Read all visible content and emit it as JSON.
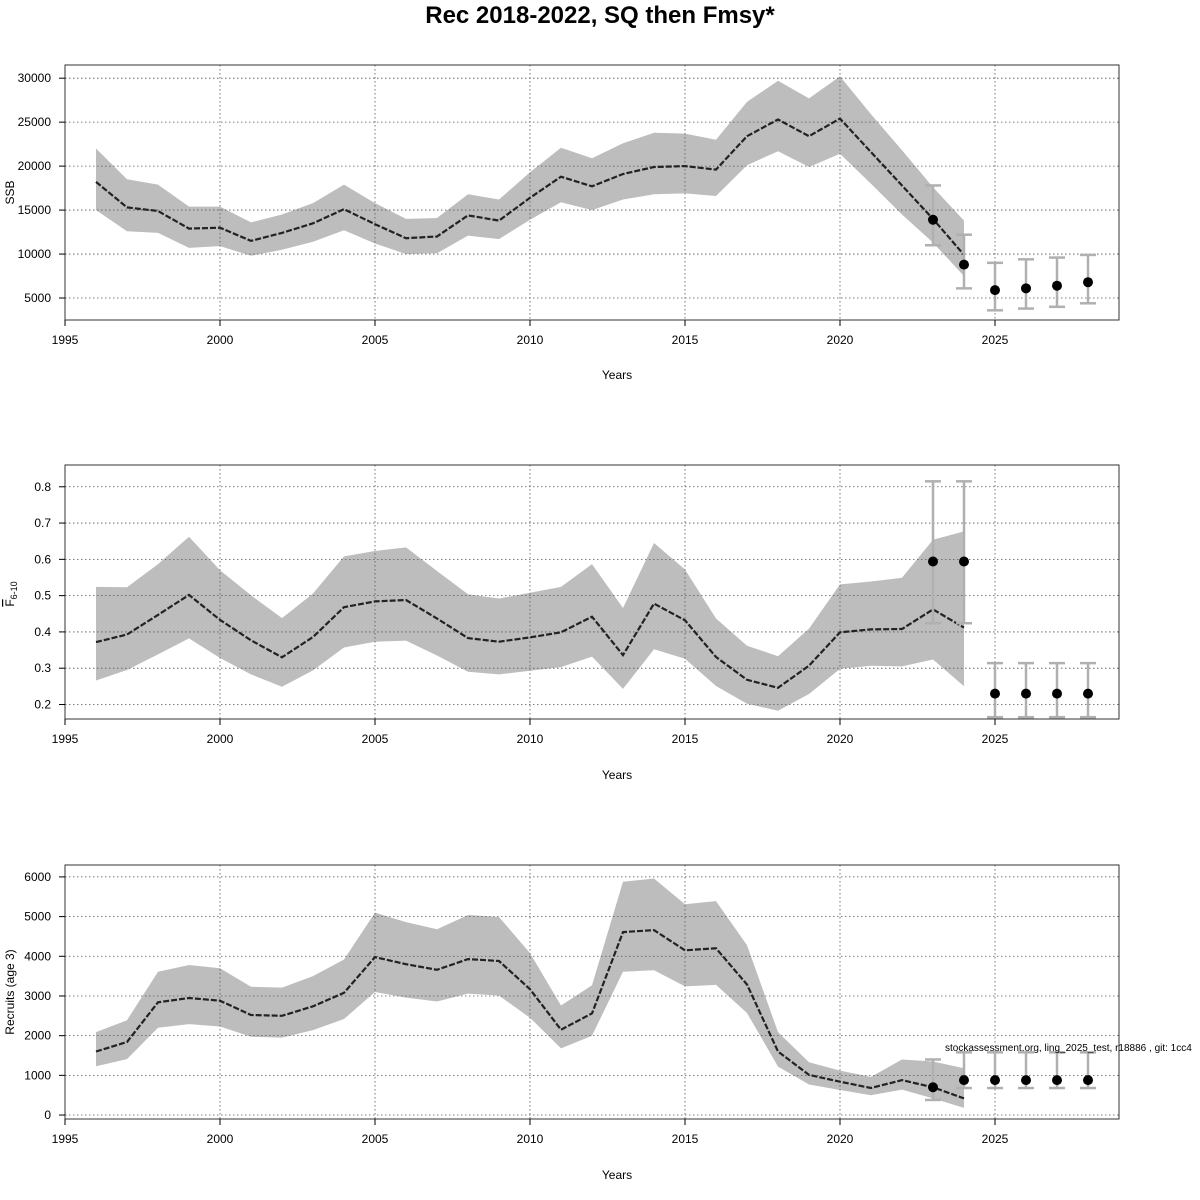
{
  "page": {
    "title": "Rec 2018-2022, SQ then Fmsy*",
    "footnote": "stockassessment.org, ling_2025_test, r18886 , git: 1cc4"
  },
  "style": {
    "band_color": "#bdbdbd",
    "line_color": "#222222",
    "point_color": "#000000",
    "errorbar_color": "#b0b0b0",
    "grid_color": "#555555"
  },
  "chart_data": [
    {
      "type": "line",
      "title": "",
      "xlabel": "Years",
      "ylabel": "SSB",
      "xlim": [
        1995,
        2029
      ],
      "ylim": [
        2500,
        31500
      ],
      "x_ticks": [
        1995,
        2000,
        2005,
        2010,
        2015,
        2020,
        2025
      ],
      "y_ticks": [
        5000,
        10000,
        15000,
        20000,
        25000,
        30000
      ],
      "grid": true,
      "estimate": {
        "x": [
          1996,
          1997,
          1998,
          1999,
          2000,
          2001,
          2002,
          2003,
          2004,
          2005,
          2006,
          2007,
          2008,
          2009,
          2010,
          2011,
          2012,
          2013,
          2014,
          2015,
          2016,
          2017,
          2018,
          2019,
          2020,
          2021,
          2022,
          2023,
          2024
        ],
        "y": [
          18200,
          15300,
          14900,
          12900,
          13000,
          11500,
          12400,
          13500,
          15100,
          13400,
          11800,
          12000,
          14400,
          13800,
          16400,
          18800,
          17700,
          19100,
          19900,
          20000,
          19600,
          23400,
          25300,
          23400,
          25400,
          21600,
          17800,
          14000,
          9900
        ],
        "lower": [
          15000,
          12600,
          12400,
          10700,
          10900,
          9800,
          10500,
          11400,
          12700,
          11200,
          10000,
          10100,
          12100,
          11700,
          13900,
          15900,
          15000,
          16200,
          16800,
          16900,
          16600,
          20100,
          21700,
          19900,
          21400,
          18000,
          14500,
          11300,
          7500
        ],
        "upper": [
          22000,
          18500,
          17900,
          15400,
          15400,
          13600,
          14500,
          15800,
          17900,
          15800,
          14000,
          14100,
          16800,
          16200,
          19300,
          22100,
          20900,
          22600,
          23800,
          23700,
          23000,
          27300,
          29700,
          27700,
          30200,
          25900,
          21800,
          17600,
          13800
        ]
      },
      "forecast": {
        "x": [
          2023,
          2024,
          2025,
          2026,
          2027,
          2028
        ],
        "y": [
          13900,
          8800,
          5900,
          6100,
          6400,
          6800
        ],
        "lower": [
          11000,
          6100,
          3600,
          3800,
          4000,
          4400
        ],
        "upper": [
          17800,
          12200,
          9000,
          9400,
          9600,
          9900
        ]
      }
    },
    {
      "type": "line",
      "title": "",
      "xlabel": "Years",
      "ylabel": "F̅6-10",
      "ylabel_main": "F",
      "ylabel_sub": "6-10",
      "xlim": [
        1995,
        2029
      ],
      "ylim": [
        0.16,
        0.86
      ],
      "x_ticks": [
        1995,
        2000,
        2005,
        2010,
        2015,
        2020,
        2025
      ],
      "y_ticks": [
        0.2,
        0.3,
        0.4,
        0.5,
        0.6,
        0.7,
        0.8
      ],
      "grid": true,
      "estimate": {
        "x": [
          1996,
          1997,
          1998,
          1999,
          2000,
          2001,
          2002,
          2003,
          2004,
          2005,
          2006,
          2007,
          2008,
          2009,
          2010,
          2011,
          2012,
          2013,
          2014,
          2015,
          2016,
          2017,
          2018,
          2019,
          2020,
          2021,
          2022,
          2023,
          2024
        ],
        "y": [
          0.372,
          0.393,
          0.447,
          0.502,
          0.433,
          0.377,
          0.33,
          0.386,
          0.468,
          0.484,
          0.488,
          0.437,
          0.383,
          0.373,
          0.385,
          0.399,
          0.442,
          0.336,
          0.478,
          0.432,
          0.331,
          0.268,
          0.246,
          0.307,
          0.399,
          0.407,
          0.408,
          0.462,
          0.412
        ],
        "lower": [
          0.266,
          0.295,
          0.338,
          0.382,
          0.328,
          0.283,
          0.249,
          0.294,
          0.357,
          0.373,
          0.376,
          0.335,
          0.29,
          0.283,
          0.293,
          0.303,
          0.332,
          0.243,
          0.352,
          0.326,
          0.251,
          0.202,
          0.183,
          0.229,
          0.298,
          0.307,
          0.305,
          0.324,
          0.25
        ],
        "upper": [
          0.524,
          0.523,
          0.587,
          0.662,
          0.57,
          0.501,
          0.438,
          0.506,
          0.608,
          0.623,
          0.633,
          0.568,
          0.504,
          0.492,
          0.508,
          0.524,
          0.587,
          0.466,
          0.645,
          0.572,
          0.437,
          0.362,
          0.333,
          0.409,
          0.531,
          0.539,
          0.549,
          0.654,
          0.677
        ]
      },
      "forecast": {
        "x": [
          2023,
          2024,
          2025,
          2026,
          2027,
          2028
        ],
        "y": [
          0.594,
          0.594,
          0.23,
          0.23,
          0.23,
          0.23
        ],
        "lower": [
          0.424,
          0.424,
          0.165,
          0.165,
          0.165,
          0.165
        ],
        "upper": [
          0.815,
          0.815,
          0.314,
          0.314,
          0.314,
          0.314
        ]
      }
    },
    {
      "type": "line",
      "title": "",
      "xlabel": "Years",
      "ylabel": "Recruits (age 3)",
      "xlim": [
        1995,
        2029
      ],
      "ylim": [
        -100,
        6300
      ],
      "x_ticks": [
        1995,
        2000,
        2005,
        2010,
        2015,
        2020,
        2025
      ],
      "y_ticks": [
        0,
        1000,
        2000,
        3000,
        4000,
        5000,
        6000
      ],
      "grid": true,
      "estimate": {
        "x": [
          1996,
          1997,
          1998,
          1999,
          2000,
          2001,
          2002,
          2003,
          2004,
          2005,
          2006,
          2007,
          2008,
          2009,
          2010,
          2011,
          2012,
          2013,
          2014,
          2015,
          2016,
          2017,
          2018,
          2019,
          2020,
          2021,
          2022,
          2023,
          2024
        ],
        "y": [
          1600,
          1840,
          2840,
          2950,
          2880,
          2520,
          2500,
          2740,
          3080,
          3980,
          3800,
          3660,
          3930,
          3880,
          3170,
          2150,
          2560,
          4610,
          4660,
          4150,
          4200,
          3290,
          1600,
          1010,
          840,
          680,
          880,
          700,
          420
        ],
        "lower": [
          1230,
          1410,
          2200,
          2290,
          2230,
          1970,
          1950,
          2140,
          2420,
          3100,
          2960,
          2860,
          3060,
          3010,
          2450,
          1680,
          2000,
          3610,
          3650,
          3240,
          3280,
          2570,
          1220,
          770,
          630,
          500,
          640,
          420,
          180
        ],
        "upper": [
          2090,
          2390,
          3610,
          3780,
          3700,
          3230,
          3210,
          3500,
          3920,
          5100,
          4860,
          4680,
          5040,
          4990,
          4080,
          2760,
          3270,
          5880,
          5960,
          5310,
          5390,
          4280,
          2090,
          1330,
          1120,
          960,
          1400,
          1350,
          1180
        ]
      },
      "forecast": {
        "x": [
          2023,
          2024,
          2025,
          2026,
          2027,
          2028
        ],
        "y": [
          700,
          880,
          880,
          880,
          880,
          880
        ],
        "lower": [
          380,
          680,
          680,
          680,
          680,
          680
        ],
        "upper": [
          1400,
          1580,
          1580,
          1580,
          1580,
          1580
        ]
      }
    }
  ]
}
